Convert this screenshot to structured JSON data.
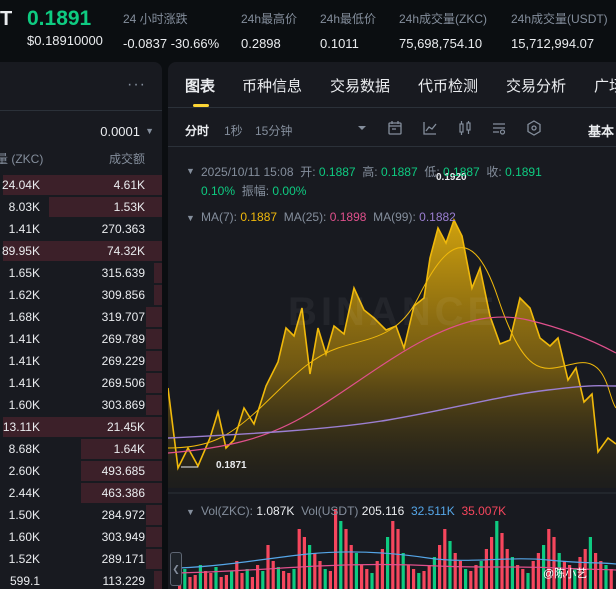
{
  "header": {
    "symbol_tail": "T",
    "price": "0.1891",
    "price_usd": "$0.18910000",
    "stats": [
      {
        "label": "24 小时涨跌",
        "value": "-0.0837 -30.66%",
        "tone": "down"
      },
      {
        "label": "24h最高价",
        "value": "0.2898",
        "tone": ""
      },
      {
        "label": "24h最低价",
        "value": "0.1011",
        "tone": ""
      },
      {
        "label": "24h成交量(ZKC)",
        "value": "75,698,754.10",
        "tone": ""
      },
      {
        "label": "24h成交量(USDT)",
        "value": "15,712,994.07",
        "tone": ""
      }
    ]
  },
  "orderbook": {
    "more_icon": "more-dots-icon",
    "precision": "0.0001",
    "col_amount": "量 (ZKC)",
    "col_total": "成交额",
    "rows": [
      {
        "amount": "24.04K",
        "total": "4.61K",
        "side": "sell",
        "fill": 0.98
      },
      {
        "amount": "8.03K",
        "total": "1.53K",
        "side": "sell",
        "fill": 0.7
      },
      {
        "amount": "1.41K",
        "total": "270.363",
        "side": "sell",
        "fill": 0.0
      },
      {
        "amount": "89.95K",
        "total": "74.32K",
        "side": "sell",
        "fill": 0.98
      },
      {
        "amount": "1.65K",
        "total": "315.639",
        "side": "sell",
        "fill": 0.05
      },
      {
        "amount": "1.62K",
        "total": "309.856",
        "side": "sell",
        "fill": 0.05
      },
      {
        "amount": "1.68K",
        "total": "319.707",
        "side": "sell",
        "fill": 0.1
      },
      {
        "amount": "1.41K",
        "total": "269.789",
        "side": "sell",
        "fill": 0.1
      },
      {
        "amount": "1.41K",
        "total": "269.229",
        "side": "sell",
        "fill": 0.1
      },
      {
        "amount": "1.41K",
        "total": "269.506",
        "side": "sell",
        "fill": 0.1
      },
      {
        "amount": "1.60K",
        "total": "303.869",
        "side": "sell",
        "fill": 0.1
      },
      {
        "amount": "13.11K",
        "total": "21.45K",
        "side": "sell",
        "fill": 0.98
      },
      {
        "amount": "8.68K",
        "total": "1.64K",
        "side": "sell",
        "fill": 0.5
      },
      {
        "amount": "2.60K",
        "total": "493.685",
        "side": "sell",
        "fill": 0.5
      },
      {
        "amount": "2.44K",
        "total": "463.386",
        "side": "sell",
        "fill": 0.5
      },
      {
        "amount": "1.50K",
        "total": "284.972",
        "side": "sell",
        "fill": 0.1
      },
      {
        "amount": "1.60K",
        "total": "303.949",
        "side": "sell",
        "fill": 0.1
      },
      {
        "amount": "1.52K",
        "total": "289.171",
        "side": "sell",
        "fill": 0.1
      },
      {
        "amount": "599.1",
        "total": "113.229",
        "side": "sell",
        "fill": 0.05
      }
    ]
  },
  "tabs": [
    {
      "label": "图表",
      "active": true
    },
    {
      "label": "币种信息",
      "active": false
    },
    {
      "label": "交易数据",
      "active": false
    },
    {
      "label": "代币检测",
      "active": false
    },
    {
      "label": "交易分析",
      "active": false
    },
    {
      "label": "广场",
      "active": false
    }
  ],
  "toolbar": {
    "intervals": [
      {
        "label": "分时",
        "active": true
      },
      {
        "label": "1秒",
        "active": false
      },
      {
        "label": "15分钟",
        "active": false
      }
    ],
    "icons": [
      "chevron-down-icon",
      "time-range-icon",
      "indicator-icon",
      "candle-type-icon",
      "settings-icon",
      "depth-icon"
    ],
    "view_label": "基本"
  },
  "ohlc": {
    "date": "2025/10/11 15:08",
    "open_label": "开:",
    "open": "0.1887",
    "high_label": "高:",
    "high": "0.1887",
    "low_label": "低:",
    "low": "0.1887",
    "close_label": "收:",
    "close": "0.1891",
    "change": "0.10%",
    "amp_label": "振幅:",
    "amp": "0.00%"
  },
  "ma": {
    "ma7_label": "MA(7):",
    "ma7": "0.1887",
    "ma25_label": "MA(25):",
    "ma25": "0.1898",
    "ma99_label": "MA(99):",
    "ma99": "0.1882"
  },
  "vol": {
    "zkc_label": "Vol(ZKC):",
    "zkc": "1.087K",
    "usdt_label": "Vol(USDT)",
    "usdt": "205.116",
    "v1": "32.511K",
    "v2": "35.007K"
  },
  "chart": {
    "high_label": "0.1920",
    "low_label": "0.1871",
    "watermark": "BINANCE",
    "credit": "@陈小艺",
    "colors": {
      "price": "#f0b90b",
      "ma7": "#f0b90b",
      "ma25": "#e0508c",
      "ma99": "#9b7fd1",
      "up": "#0ecb81",
      "down": "#f6465d"
    }
  }
}
